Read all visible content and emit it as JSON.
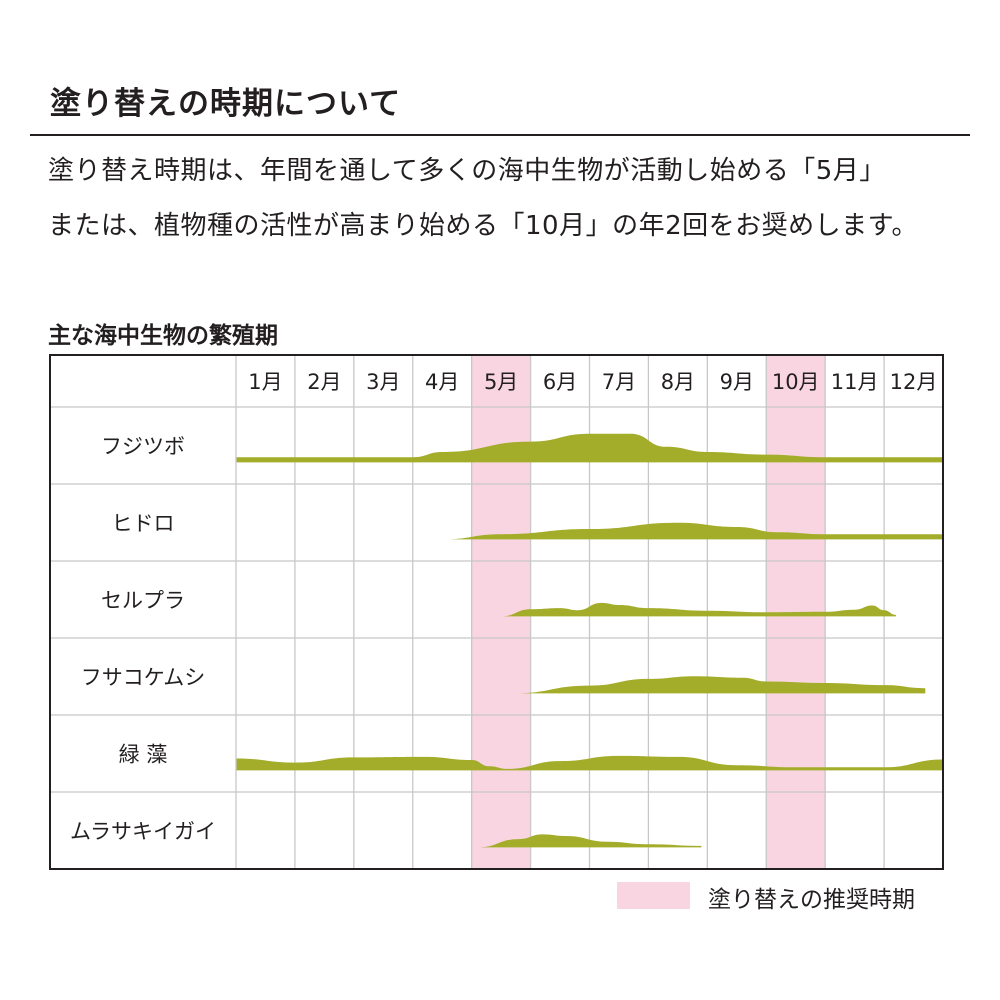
{
  "header": {
    "title": "塗り替えの時期について",
    "description_line1": "塗り替え時期は、年間を通して多くの海中生物が活動し始める「5月」",
    "description_line2": "または、植物種の活性が高まり始める「10月」の年2回をお奨めします。"
  },
  "colors": {
    "band": "#a3ad2a",
    "highlight": "#f9d4e1",
    "grid": "#c8c8c8",
    "border": "#231f20"
  },
  "chart_data": {
    "type": "area",
    "title": "主な海中生物の繁殖期",
    "months": [
      "1月",
      "2月",
      "3月",
      "4月",
      "5月",
      "6月",
      "7月",
      "8月",
      "9月",
      "10月",
      "11月",
      "12月"
    ],
    "highlight_months": [
      5,
      10
    ],
    "value_scale": "relative breeding activity (0-10), x in month units where 0 = start of January",
    "series": [
      {
        "name": "フジツボ",
        "points": [
          [
            0,
            1
          ],
          [
            3,
            1
          ],
          [
            3.5,
            2
          ],
          [
            5,
            4
          ],
          [
            6,
            5.5
          ],
          [
            6.7,
            5.5
          ],
          [
            7.3,
            3
          ],
          [
            8,
            2
          ],
          [
            9,
            1.5
          ],
          [
            10,
            1
          ],
          [
            11,
            1
          ],
          [
            12,
            1
          ]
        ]
      },
      {
        "name": "ヒドロ",
        "points": [
          [
            3.5,
            0
          ],
          [
            4.5,
            1
          ],
          [
            6,
            2
          ],
          [
            7.5,
            3.2
          ],
          [
            8.5,
            2.4
          ],
          [
            9.2,
            1.4
          ],
          [
            10,
            1
          ],
          [
            12,
            1
          ]
        ]
      },
      {
        "name": "セルプラ",
        "points": [
          [
            4.5,
            0
          ],
          [
            5,
            1.4
          ],
          [
            5.5,
            1.6
          ],
          [
            5.8,
            1.2
          ],
          [
            6.2,
            2.6
          ],
          [
            6.5,
            2.2
          ],
          [
            7,
            1.6
          ],
          [
            8,
            1.1
          ],
          [
            9,
            0.8
          ],
          [
            10,
            0.9
          ],
          [
            10.5,
            1.3
          ],
          [
            10.8,
            2.1
          ],
          [
            11,
            1.2
          ],
          [
            11.2,
            0.3
          ]
        ]
      },
      {
        "name": "フサコケムシ",
        "points": [
          [
            4.7,
            0
          ],
          [
            6,
            1.5
          ],
          [
            7,
            2.8
          ],
          [
            7.8,
            3.3
          ],
          [
            8.6,
            3.0
          ],
          [
            9,
            2.3
          ],
          [
            10,
            2.0
          ],
          [
            11,
            1.6
          ],
          [
            11.7,
            1.0
          ]
        ]
      },
      {
        "name": "緑 藻",
        "points": [
          [
            0,
            2.3
          ],
          [
            1,
            1.5
          ],
          [
            2,
            2.5
          ],
          [
            3.2,
            2.6
          ],
          [
            4,
            2.0
          ],
          [
            4.3,
            0.8
          ],
          [
            4.6,
            0.3
          ],
          [
            5.5,
            1.8
          ],
          [
            6.5,
            2.8
          ],
          [
            7.5,
            2.6
          ],
          [
            8.5,
            1.0
          ],
          [
            9.5,
            0.6
          ],
          [
            11,
            0.6
          ],
          [
            12,
            2.1
          ]
        ]
      },
      {
        "name": "ムラサキイガイ",
        "points": [
          [
            4.1,
            0
          ],
          [
            4.8,
            1.6
          ],
          [
            5.2,
            2.5
          ],
          [
            5.6,
            2.2
          ],
          [
            6.3,
            1.1
          ],
          [
            7,
            0.6
          ],
          [
            7.9,
            0.3
          ]
        ]
      }
    ]
  },
  "legend": {
    "label": "塗り替えの推奨時期"
  }
}
